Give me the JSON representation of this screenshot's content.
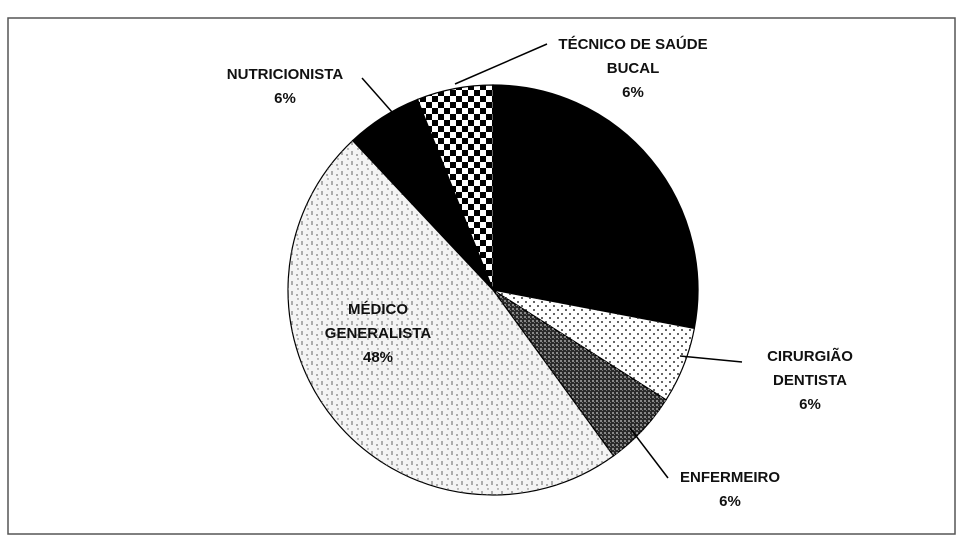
{
  "chart_data": {
    "type": "pie",
    "categories": [
      null,
      "CIRURGIÃO DENTISTA",
      "ENFERMEIRO",
      "MÉDICO GENERALISTA",
      "NUTRICIONISTA",
      "TÉCNICO DE SAÚDE BUCAL"
    ],
    "values": [
      28,
      6,
      6,
      48,
      6,
      6
    ],
    "value_labels": [
      null,
      "6%",
      "6%",
      "48%",
      "6%",
      "6%"
    ],
    "colors": [
      "#000000",
      "#ffffff",
      "#2a2a2a",
      "#f4f4f4",
      "#000000",
      "#ffffff"
    ]
  }
}
